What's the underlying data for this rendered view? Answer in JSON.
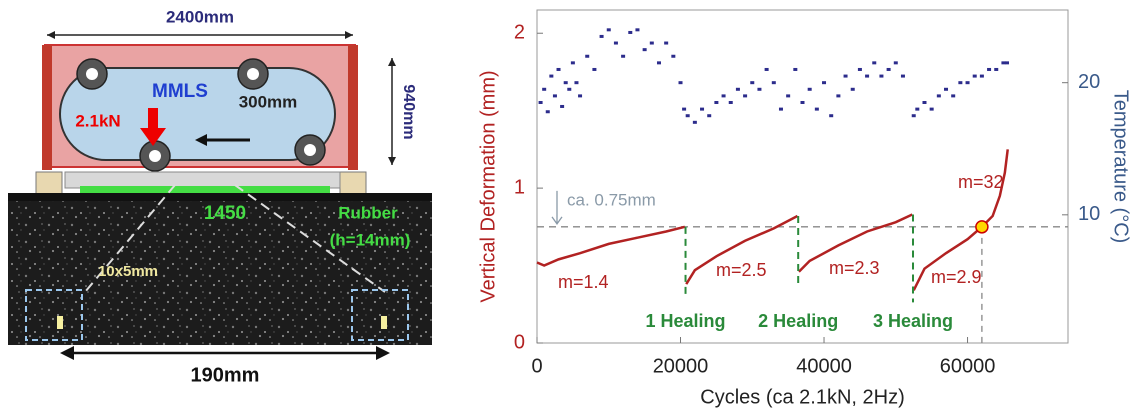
{
  "diagram": {
    "width_label": "2400mm",
    "height_label": "940mm",
    "machine": "MMLS",
    "wheel_label": "300mm",
    "load": "2.1kN",
    "length_label": "1450",
    "rubber": "Rubber",
    "rubber_height": "(h=14mm)",
    "window": "10x5mm",
    "sample_width": "190mm"
  },
  "chart_data": {
    "type": "line",
    "xlabel": "Cycles (ca 2.1kN, 2Hz)",
    "ylabel": "Vertical Deformation (mm)",
    "y2label": "Temperature (°C)",
    "xlim": [
      0,
      74000
    ],
    "xticks": [
      0,
      20000,
      40000,
      60000
    ],
    "ylim": [
      0,
      2.15
    ],
    "yticks": [
      0,
      1,
      2
    ],
    "y2lim": [
      0.3,
      25.5
    ],
    "y2ticks": [
      10,
      20
    ],
    "series": [
      {
        "color": "#b22222",
        "style": "line",
        "x": [
          0,
          1000,
          3000,
          6000,
          10000,
          14000,
          18000,
          20600,
          null,
          20800,
          22000,
          25000,
          29000,
          33000,
          36300,
          null,
          36500,
          38000,
          42000,
          46000,
          50000,
          52300,
          null,
          52500,
          54000,
          57000,
          60000,
          62000,
          63500,
          64500,
          65200,
          65600
        ],
        "values": [
          0.52,
          0.5,
          0.54,
          0.58,
          0.64,
          0.68,
          0.72,
          0.75,
          null,
          0.38,
          0.47,
          0.56,
          0.66,
          0.74,
          0.82,
          null,
          0.46,
          0.53,
          0.63,
          0.72,
          0.78,
          0.83,
          null,
          0.34,
          0.48,
          0.58,
          0.67,
          0.75,
          0.82,
          0.95,
          1.1,
          1.25
        ]
      },
      {
        "color": "#2c2c8c",
        "style": "dots",
        "axis": "y2",
        "x": [
          500,
          1000,
          1500,
          2000,
          2500,
          3000,
          3500,
          4000,
          4500,
          5000,
          5500,
          6000,
          7000,
          8000,
          9000,
          10000,
          11000,
          12000,
          13000,
          14000,
          15000,
          16000,
          17000,
          18000,
          19000,
          20000,
          20500,
          21000,
          22000,
          23000,
          24000,
          25000,
          26000,
          27000,
          28000,
          29000,
          30000,
          31000,
          32000,
          33000,
          34000,
          35000,
          36000,
          37000,
          38000,
          39000,
          40000,
          41000,
          42000,
          43000,
          44000,
          45000,
          46000,
          47000,
          48000,
          49000,
          50000,
          51000,
          52500,
          53000,
          54000,
          55000,
          56000,
          57000,
          58000,
          59000,
          60000,
          61000,
          62000,
          63000,
          64000,
          65000,
          65500
        ],
        "values": [
          18.5,
          19.5,
          17.8,
          20.5,
          19,
          21,
          18.2,
          20,
          19.5,
          21.5,
          20,
          19,
          22,
          21,
          23.5,
          24,
          23,
          22,
          23.8,
          24,
          22.5,
          23,
          21.5,
          23,
          22,
          20,
          18,
          17.5,
          17,
          18,
          17.5,
          18.5,
          19,
          18.5,
          19.5,
          19,
          20,
          19.5,
          21,
          20,
          18,
          19,
          21,
          18.5,
          19.5,
          18,
          20,
          17.5,
          19,
          20.5,
          19.5,
          21,
          20.5,
          21.5,
          20.5,
          21,
          21.5,
          20.5,
          17.5,
          18,
          18.5,
          18,
          19,
          19.5,
          19,
          20,
          20,
          20.5,
          20.5,
          21,
          21,
          21.5,
          21.5
        ]
      }
    ],
    "reference_line": {
      "value": 0.75,
      "label": "ca. 0.75mm"
    },
    "marker": {
      "x": 62000,
      "y": 0.75,
      "color": "#ffd700"
    },
    "healing": [
      {
        "x": 20700,
        "label": "1 Healing"
      },
      {
        "x": 36400,
        "label": "2 Healing"
      },
      {
        "x": 52400,
        "label": "3 Healing"
      }
    ],
    "slopes": [
      "m=1.4",
      "m=2.5",
      "m=2.3",
      "m=2.9",
      "m=32"
    ]
  }
}
